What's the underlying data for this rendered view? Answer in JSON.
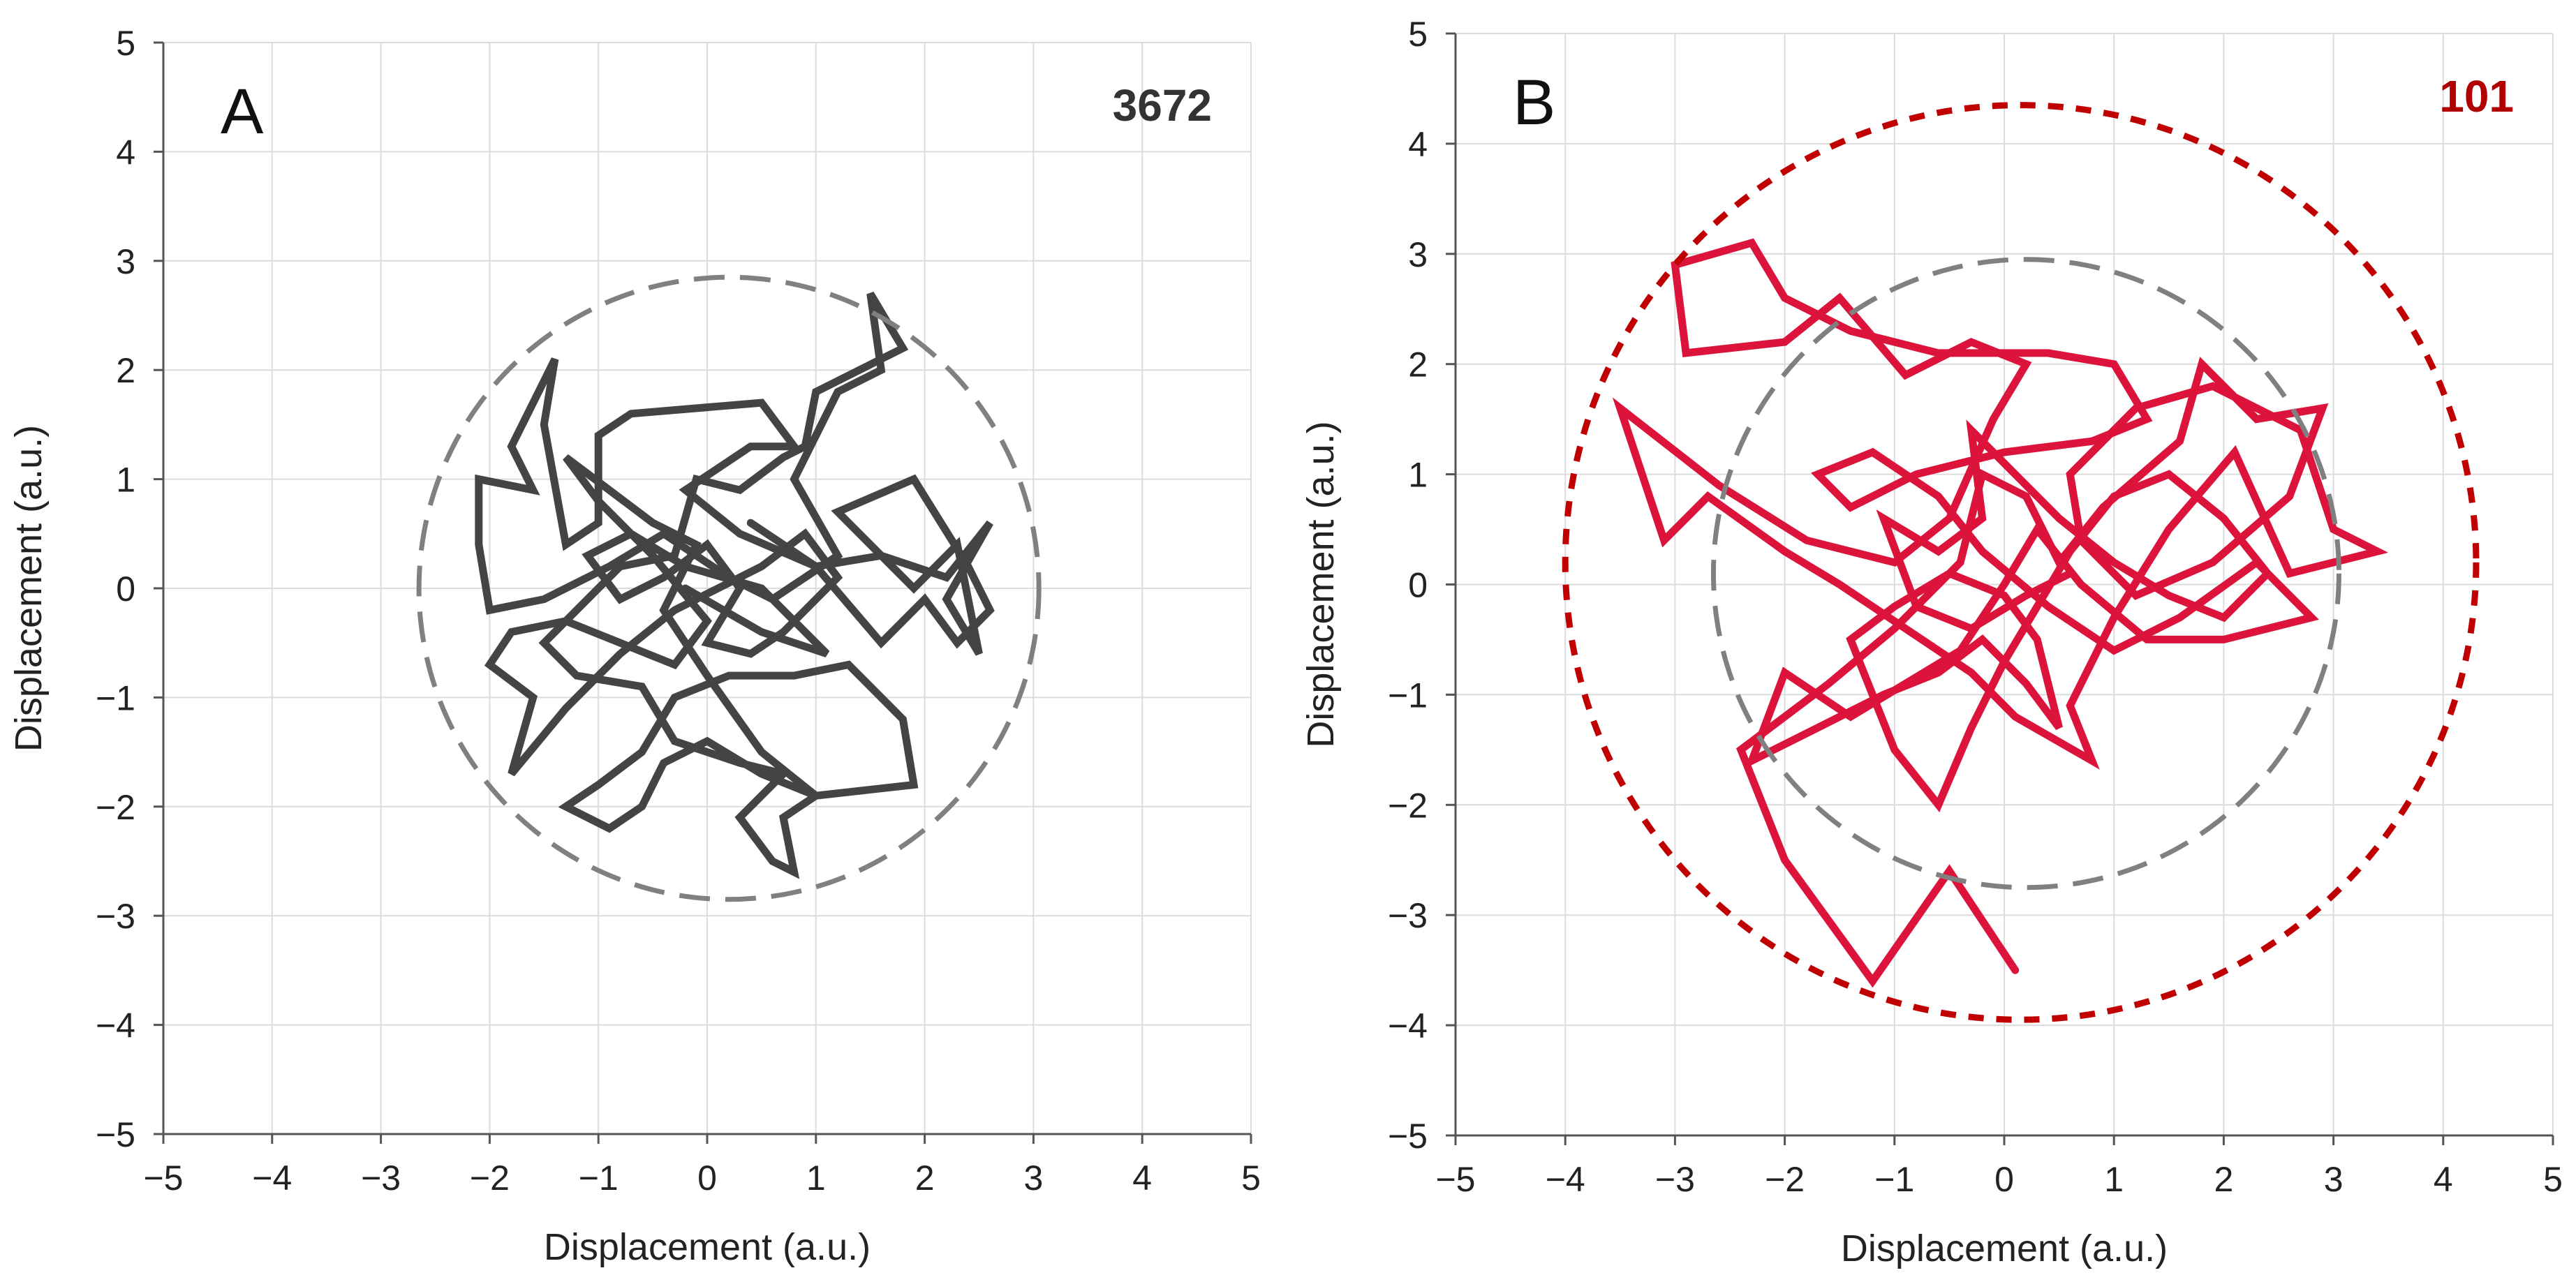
{
  "chart_data": [
    {
      "type": "line",
      "panel_label": "A",
      "annotation": "3672",
      "annotation_color": "#333333",
      "xlabel": "Displacement (a.u.)",
      "ylabel": "Displacement (a.u.)",
      "xlim": [
        -5,
        5
      ],
      "ylim": [
        -5,
        5
      ],
      "xticks": [
        -5,
        -4,
        -3,
        -2,
        -1,
        0,
        1,
        2,
        3,
        4,
        5
      ],
      "yticks": [
        -5,
        -4,
        -3,
        -2,
        -1,
        0,
        1,
        2,
        3,
        4,
        5
      ],
      "tick_labels": [
        "−5",
        "−4",
        "−3",
        "−2",
        "−1",
        "0",
        "1",
        "2",
        "3",
        "4",
        "5"
      ],
      "grid": true,
      "series": [
        {
          "name": "trajectory",
          "color": "#444444",
          "points": [
            [
              0.4,
              0.6
            ],
            [
              1.0,
              0.2
            ],
            [
              1.6,
              0.3
            ],
            [
              2.2,
              0.1
            ],
            [
              2.6,
              0.6
            ],
            [
              2.2,
              -0.1
            ],
            [
              2.5,
              -0.6
            ],
            [
              2.3,
              0.4
            ],
            [
              1.9,
              0.0
            ],
            [
              1.2,
              0.7
            ],
            [
              1.9,
              1.0
            ],
            [
              2.4,
              0.2
            ],
            [
              2.6,
              -0.2
            ],
            [
              2.3,
              -0.5
            ],
            [
              2.0,
              -0.1
            ],
            [
              1.6,
              -0.5
            ],
            [
              1.0,
              0.2
            ],
            [
              0.3,
              0.5
            ],
            [
              -0.2,
              0.9
            ],
            [
              0.4,
              1.3
            ],
            [
              0.8,
              1.3
            ],
            [
              0.5,
              1.7
            ],
            [
              -0.7,
              1.6
            ],
            [
              -1.0,
              1.4
            ],
            [
              -1.0,
              0.6
            ],
            [
              -1.3,
              0.4
            ],
            [
              -1.5,
              1.5
            ],
            [
              -1.4,
              2.1
            ],
            [
              -1.8,
              1.3
            ],
            [
              -1.6,
              0.9
            ],
            [
              -2.1,
              1.0
            ],
            [
              -2.1,
              0.4
            ],
            [
              -2.0,
              -0.2
            ],
            [
              -1.5,
              -0.1
            ],
            [
              -0.9,
              0.2
            ],
            [
              -0.4,
              0.5
            ],
            [
              0.2,
              0.1
            ],
            [
              0.6,
              -0.1
            ],
            [
              1.2,
              0.3
            ],
            [
              0.8,
              1.0
            ],
            [
              1.2,
              1.8
            ],
            [
              1.6,
              2.0
            ],
            [
              1.5,
              2.7
            ],
            [
              1.8,
              2.2
            ],
            [
              1.0,
              1.8
            ],
            [
              0.9,
              1.3
            ],
            [
              0.7,
              1.2
            ],
            [
              0.3,
              0.9
            ],
            [
              -0.1,
              1.0
            ],
            [
              -0.3,
              0.3
            ],
            [
              -0.8,
              0.2
            ],
            [
              -1.2,
              -0.2
            ],
            [
              -1.5,
              -0.5
            ],
            [
              -1.2,
              -0.8
            ],
            [
              -0.6,
              -0.9
            ],
            [
              -0.3,
              -1.4
            ],
            [
              0.3,
              -1.6
            ],
            [
              0.7,
              -1.7
            ],
            [
              0.3,
              -2.1
            ],
            [
              0.6,
              -2.5
            ],
            [
              0.8,
              -2.6
            ],
            [
              0.7,
              -2.1
            ],
            [
              1.0,
              -1.9
            ],
            [
              0.5,
              -1.7
            ],
            [
              0.0,
              -1.4
            ],
            [
              -0.4,
              -1.6
            ],
            [
              -0.6,
              -2.0
            ],
            [
              -0.9,
              -2.2
            ],
            [
              -1.3,
              -2.0
            ],
            [
              -1.0,
              -1.8
            ],
            [
              -0.6,
              -1.5
            ],
            [
              -0.3,
              -1.0
            ],
            [
              0.2,
              -0.8
            ],
            [
              0.8,
              -0.8
            ],
            [
              1.3,
              -0.7
            ],
            [
              1.8,
              -1.2
            ],
            [
              1.9,
              -1.8
            ],
            [
              1.0,
              -1.9
            ],
            [
              0.5,
              -1.5
            ],
            [
              0.0,
              -0.8
            ],
            [
              -0.4,
              -0.2
            ],
            [
              -0.1,
              0.4
            ],
            [
              -0.5,
              0.6
            ],
            [
              -0.9,
              0.9
            ],
            [
              -1.3,
              1.2
            ],
            [
              -1.0,
              0.8
            ],
            [
              -0.5,
              0.3
            ],
            [
              0.0,
              -0.3
            ],
            [
              -0.3,
              -0.7
            ],
            [
              -0.8,
              -0.5
            ],
            [
              -1.3,
              -0.3
            ],
            [
              -1.8,
              -0.4
            ],
            [
              -2.0,
              -0.7
            ],
            [
              -1.6,
              -1.0
            ],
            [
              -1.8,
              -1.7
            ],
            [
              -1.3,
              -1.1
            ],
            [
              -0.8,
              -0.6
            ],
            [
              -0.3,
              -0.2
            ],
            [
              0.1,
              0.0
            ],
            [
              0.5,
              0.2
            ],
            [
              0.9,
              0.5
            ],
            [
              1.2,
              0.1
            ],
            [
              0.7,
              -0.4
            ],
            [
              0.4,
              -0.6
            ],
            [
              0.0,
              -0.5
            ],
            [
              0.3,
              0.0
            ],
            [
              0.0,
              0.4
            ],
            [
              -0.4,
              0.1
            ],
            [
              -0.8,
              -0.1
            ],
            [
              -1.1,
              0.3
            ],
            [
              -0.7,
              0.5
            ],
            [
              -0.2,
              0.2
            ],
            [
              0.5,
              0.0
            ],
            [
              1.1,
              -0.6
            ],
            [
              0.5,
              -0.4
            ],
            [
              -0.2,
              0.0
            ]
          ]
        }
      ],
      "circles": [
        {
          "name": "reference-circle",
          "style": "dashed",
          "color": "#808080",
          "center": [
            0.2,
            0.0
          ],
          "radius": 2.85
        }
      ]
    },
    {
      "type": "line",
      "panel_label": "B",
      "annotation": "101",
      "annotation_color": "#B00000",
      "xlabel": "Displacement (a.u.)",
      "ylabel": "Displacement (a.u.)",
      "xlim": [
        -5,
        5
      ],
      "ylim": [
        -5,
        5
      ],
      "xticks": [
        -5,
        -4,
        -3,
        -2,
        -1,
        0,
        1,
        2,
        3,
        4,
        5
      ],
      "yticks": [
        -5,
        -4,
        -3,
        -2,
        -1,
        0,
        1,
        2,
        3,
        4,
        5
      ],
      "tick_labels": [
        "−5",
        "−4",
        "−3",
        "−2",
        "−1",
        "0",
        "1",
        "2",
        "3",
        "4",
        "5"
      ],
      "grid": true,
      "series": [
        {
          "name": "trajectory",
          "color": "#DC143C",
          "points": [
            [
              0.1,
              -3.5
            ],
            [
              -0.5,
              -2.6
            ],
            [
              -1.2,
              -3.6
            ],
            [
              -2.0,
              -2.5
            ],
            [
              -2.4,
              -1.5
            ],
            [
              -1.6,
              -0.9
            ],
            [
              -1.0,
              -0.4
            ],
            [
              -0.4,
              0.2
            ],
            [
              -0.2,
              1.0
            ],
            [
              0.2,
              0.8
            ],
            [
              0.5,
              0.2
            ],
            [
              0.9,
              0.7
            ],
            [
              1.6,
              1.3
            ],
            [
              1.8,
              2.0
            ],
            [
              2.3,
              1.5
            ],
            [
              2.9,
              1.6
            ],
            [
              2.6,
              0.8
            ],
            [
              1.9,
              0.2
            ],
            [
              1.2,
              -0.1
            ],
            [
              0.7,
              0.4
            ],
            [
              0.6,
              1.0
            ],
            [
              1.2,
              1.6
            ],
            [
              1.9,
              1.8
            ],
            [
              2.7,
              1.4
            ],
            [
              3.0,
              0.5
            ],
            [
              3.4,
              0.3
            ],
            [
              2.6,
              0.1
            ],
            [
              2.1,
              1.2
            ],
            [
              1.5,
              0.5
            ],
            [
              1.0,
              -0.3
            ],
            [
              0.6,
              -1.1
            ],
            [
              0.8,
              -1.6
            ],
            [
              0.1,
              -1.2
            ],
            [
              -0.3,
              -0.8
            ],
            [
              -0.9,
              -0.4
            ],
            [
              -1.5,
              0.0
            ],
            [
              -2.0,
              0.3
            ],
            [
              -2.7,
              0.8
            ],
            [
              -3.1,
              0.4
            ],
            [
              -3.5,
              1.6
            ],
            [
              -2.6,
              0.9
            ],
            [
              -1.8,
              0.4
            ],
            [
              -1.0,
              0.2
            ],
            [
              -0.5,
              0.6
            ],
            [
              -0.1,
              1.5
            ],
            [
              0.2,
              2.0
            ],
            [
              -0.3,
              2.2
            ],
            [
              -0.9,
              1.9
            ],
            [
              -1.5,
              2.6
            ],
            [
              -2.0,
              2.2
            ],
            [
              -2.9,
              2.1
            ],
            [
              -3.0,
              2.9
            ],
            [
              -2.3,
              3.1
            ],
            [
              -2.0,
              2.6
            ],
            [
              -1.4,
              2.3
            ],
            [
              -0.6,
              2.1
            ],
            [
              0.4,
              2.1
            ],
            [
              1.0,
              2.0
            ],
            [
              1.3,
              1.5
            ],
            [
              0.8,
              1.3
            ],
            [
              0.0,
              1.2
            ],
            [
              -0.8,
              1.0
            ],
            [
              -1.4,
              0.7
            ],
            [
              -1.7,
              1.0
            ],
            [
              -1.2,
              1.2
            ],
            [
              -0.6,
              0.8
            ],
            [
              -0.2,
              0.3
            ],
            [
              0.4,
              -0.2
            ],
            [
              1.0,
              -0.6
            ],
            [
              1.6,
              -0.3
            ],
            [
              2.3,
              0.2
            ],
            [
              2.8,
              -0.3
            ],
            [
              2.0,
              -0.5
            ],
            [
              1.3,
              -0.5
            ],
            [
              0.7,
              0.0
            ],
            [
              0.3,
              0.5
            ],
            [
              0.0,
              0.0
            ],
            [
              -0.4,
              -0.6
            ],
            [
              -0.9,
              -0.9
            ],
            [
              -1.4,
              -1.2
            ],
            [
              -2.0,
              -0.8
            ],
            [
              -2.3,
              -1.6
            ],
            [
              -1.7,
              -1.3
            ],
            [
              -1.1,
              -1.0
            ],
            [
              -0.6,
              -0.8
            ],
            [
              -0.2,
              -0.5
            ],
            [
              0.2,
              -0.9
            ],
            [
              0.5,
              -1.3
            ],
            [
              0.3,
              -0.5
            ],
            [
              0.0,
              -0.1
            ],
            [
              -0.5,
              0.1
            ],
            [
              -1.0,
              -0.2
            ],
            [
              -1.4,
              -0.5
            ],
            [
              -1.0,
              -1.5
            ],
            [
              -0.6,
              -2.0
            ],
            [
              -0.3,
              -1.3
            ],
            [
              0.0,
              -0.7
            ],
            [
              0.3,
              -0.2
            ],
            [
              0.6,
              0.3
            ],
            [
              1.0,
              0.8
            ],
            [
              1.5,
              1.0
            ],
            [
              2.0,
              0.6
            ],
            [
              2.4,
              0.1
            ],
            [
              2.0,
              -0.3
            ],
            [
              1.5,
              -0.1
            ],
            [
              1.0,
              0.2
            ],
            [
              0.5,
              0.6
            ],
            [
              0.1,
              1.0
            ],
            [
              -0.3,
              1.4
            ],
            [
              -0.2,
              0.6
            ],
            [
              -0.6,
              0.3
            ],
            [
              -1.1,
              0.6
            ],
            [
              -0.8,
              -0.2
            ],
            [
              -0.3,
              -0.4
            ],
            [
              0.2,
              -0.1
            ],
            [
              0.6,
              0.1
            ]
          ]
        }
      ],
      "circles": [
        {
          "name": "reference-circle",
          "style": "dashed",
          "color": "#808080",
          "center": [
            0.2,
            0.1
          ],
          "radius": 2.85
        },
        {
          "name": "outer-circle",
          "style": "dotted",
          "color": "#C00000",
          "center": [
            0.15,
            0.2
          ],
          "radius": 4.15
        }
      ]
    }
  ]
}
